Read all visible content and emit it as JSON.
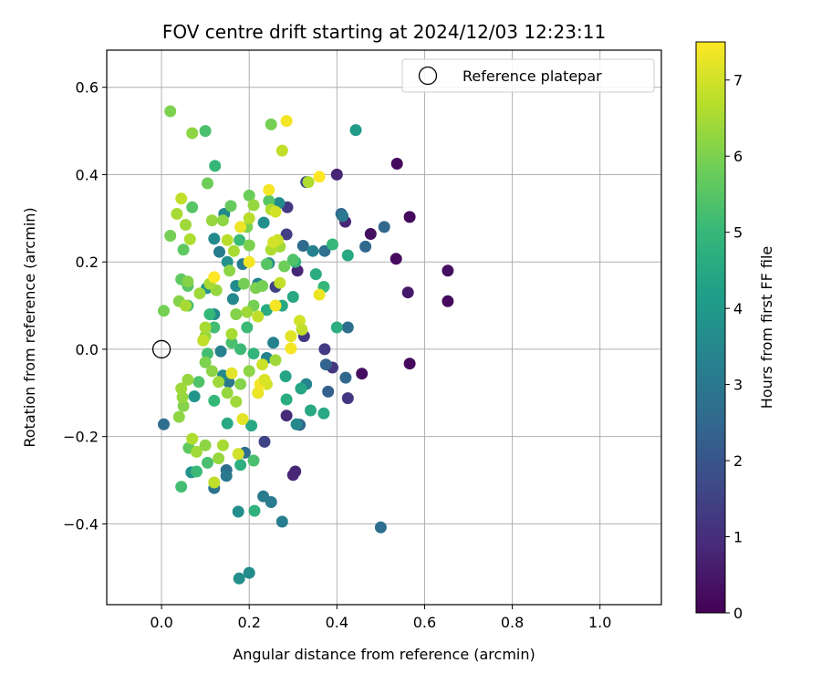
{
  "chart_data": {
    "type": "scatter",
    "title": "FOV centre drift starting at 2024/12/03 12:23:11",
    "xlabel": "Angular distance from reference (arcmin)",
    "ylabel": "Rotation from reference (arcmin)",
    "xlim": [
      -0.125,
      1.14
    ],
    "ylim": [
      -0.585,
      0.685
    ],
    "xticks": [
      "0.0",
      "0.2",
      "0.4",
      "0.6",
      "0.8",
      "1.0"
    ],
    "yticks": [
      "−0.4",
      "−0.2",
      "0.0",
      "0.2",
      "0.4",
      "0.6"
    ],
    "grid": true,
    "legend": {
      "position": "top-right",
      "label": "Reference platepar",
      "marker": "open-circle"
    },
    "reference_point": {
      "x": 0.0,
      "y": 0.0
    },
    "colorbar": {
      "label": "Hours from first FF file",
      "range": [
        0,
        7.5
      ],
      "ticks": [
        "0",
        "1",
        "2",
        "3",
        "4",
        "5",
        "6",
        "7"
      ],
      "colormap": "viridis",
      "stops": [
        "#440154",
        "#482878",
        "#3e4989",
        "#31688e",
        "#26828e",
        "#1f9e89",
        "#35b779",
        "#6ece58",
        "#b5de2b",
        "#fde725"
      ]
    },
    "points": [
      {
        "x": 0.537,
        "y": 0.425,
        "h": 0.2
      },
      {
        "x": 0.566,
        "y": 0.303,
        "h": 0.2
      },
      {
        "x": 0.653,
        "y": 0.18,
        "h": 0.3
      },
      {
        "x": 0.653,
        "y": 0.11,
        "h": 0.2
      },
      {
        "x": 0.562,
        "y": 0.13,
        "h": 0.5
      },
      {
        "x": 0.535,
        "y": 0.207,
        "h": 0.2
      },
      {
        "x": 0.477,
        "y": 0.264,
        "h": 0.3
      },
      {
        "x": 0.566,
        "y": -0.033,
        "h": 0.2
      },
      {
        "x": 0.457,
        "y": -0.056,
        "h": 0.3
      },
      {
        "x": 0.4,
        "y": 0.4,
        "h": 0.8
      },
      {
        "x": 0.419,
        "y": 0.292,
        "h": 0.8
      },
      {
        "x": 0.31,
        "y": 0.18,
        "h": 0.8
      },
      {
        "x": 0.3,
        "y": -0.288,
        "h": 0.8
      },
      {
        "x": 0.305,
        "y": -0.28,
        "h": 0.8
      },
      {
        "x": 0.315,
        "y": -0.173,
        "h": 0.8
      },
      {
        "x": 0.285,
        "y": -0.152,
        "h": 0.9
      },
      {
        "x": 0.425,
        "y": -0.112,
        "h": 1.2
      },
      {
        "x": 0.39,
        "y": -0.042,
        "h": 1.2
      },
      {
        "x": 0.372,
        "y": 0.0,
        "h": 1.3
      },
      {
        "x": 0.325,
        "y": 0.03,
        "h": 1.3
      },
      {
        "x": 0.287,
        "y": 0.325,
        "h": 1.3
      },
      {
        "x": 0.285,
        "y": 0.263,
        "h": 1.4
      },
      {
        "x": 0.26,
        "y": 0.143,
        "h": 1.5
      },
      {
        "x": 0.235,
        "y": -0.212,
        "h": 1.5
      },
      {
        "x": 0.33,
        "y": 0.383,
        "h": 1.8
      },
      {
        "x": 0.41,
        "y": 0.31,
        "h": 2.5
      },
      {
        "x": 0.465,
        "y": 0.235,
        "h": 2.5
      },
      {
        "x": 0.508,
        "y": 0.28,
        "h": 2.5
      },
      {
        "x": 0.5,
        "y": -0.408,
        "h": 2.7
      },
      {
        "x": 0.42,
        "y": -0.065,
        "h": 2.5
      },
      {
        "x": 0.38,
        "y": -0.097,
        "h": 2.3
      },
      {
        "x": 0.375,
        "y": -0.035,
        "h": 2.4
      },
      {
        "x": 0.425,
        "y": 0.05,
        "h": 2.7
      },
      {
        "x": 0.372,
        "y": 0.225,
        "h": 2.8
      },
      {
        "x": 0.323,
        "y": 0.237,
        "h": 2.6
      },
      {
        "x": 0.315,
        "y": -0.173,
        "h": 2.5
      },
      {
        "x": 0.232,
        "y": -0.337,
        "h": 3.1
      },
      {
        "x": 0.25,
        "y": -0.35,
        "h": 3.1
      },
      {
        "x": 0.275,
        "y": -0.395,
        "h": 3.2
      },
      {
        "x": 0.19,
        "y": -0.237,
        "h": 2.7
      },
      {
        "x": 0.148,
        "y": -0.277,
        "h": 2.7
      },
      {
        "x": 0.148,
        "y": -0.29,
        "h": 3.0
      },
      {
        "x": 0.12,
        "y": -0.318,
        "h": 2.9
      },
      {
        "x": 0.005,
        "y": -0.172,
        "h": 2.7
      },
      {
        "x": 0.2,
        "y": -0.512,
        "h": 3.6
      },
      {
        "x": 0.177,
        "y": -0.525,
        "h": 3.7
      },
      {
        "x": 0.175,
        "y": -0.372,
        "h": 3.7
      },
      {
        "x": 0.212,
        "y": -0.37,
        "h": 4.8
      },
      {
        "x": 0.068,
        "y": -0.282,
        "h": 3.9
      },
      {
        "x": 0.075,
        "y": -0.108,
        "h": 3.9
      },
      {
        "x": 0.153,
        "y": -0.075,
        "h": 3.6
      },
      {
        "x": 0.153,
        "y": -0.075,
        "h": 3.0
      },
      {
        "x": 0.14,
        "y": -0.06,
        "h": 3.5
      },
      {
        "x": 0.12,
        "y": 0.08,
        "h": 3.6
      },
      {
        "x": 0.103,
        "y": 0.14,
        "h": 3.8
      },
      {
        "x": 0.15,
        "y": 0.2,
        "h": 3.8
      },
      {
        "x": 0.17,
        "y": 0.145,
        "h": 3.6
      },
      {
        "x": 0.163,
        "y": 0.115,
        "h": 3.5
      },
      {
        "x": 0.245,
        "y": 0.197,
        "h": 3.5
      },
      {
        "x": 0.22,
        "y": 0.15,
        "h": 3.3
      },
      {
        "x": 0.255,
        "y": 0.015,
        "h": 3.3
      },
      {
        "x": 0.24,
        "y": -0.02,
        "h": 3.3
      },
      {
        "x": 0.308,
        "y": -0.172,
        "h": 3.5
      },
      {
        "x": 0.33,
        "y": -0.08,
        "h": 3.4
      },
      {
        "x": 0.345,
        "y": 0.225,
        "h": 3.3
      },
      {
        "x": 0.268,
        "y": 0.335,
        "h": 3.6
      },
      {
        "x": 0.12,
        "y": 0.253,
        "h": 3.6
      },
      {
        "x": 0.185,
        "y": 0.195,
        "h": 3.2
      },
      {
        "x": 0.132,
        "y": 0.223,
        "h": 3.1
      },
      {
        "x": 0.143,
        "y": 0.31,
        "h": 3.5
      },
      {
        "x": 0.135,
        "y": -0.005,
        "h": 3.3
      },
      {
        "x": 0.233,
        "y": 0.29,
        "h": 3.7
      },
      {
        "x": 0.443,
        "y": 0.502,
        "h": 4.1
      },
      {
        "x": 0.413,
        "y": 0.305,
        "h": 3.0
      },
      {
        "x": 0.425,
        "y": 0.215,
        "h": 4.5
      },
      {
        "x": 0.352,
        "y": 0.172,
        "h": 4.6
      },
      {
        "x": 0.305,
        "y": 0.2,
        "h": 4.9
      },
      {
        "x": 0.3,
        "y": 0.12,
        "h": 4.5
      },
      {
        "x": 0.34,
        "y": -0.14,
        "h": 4.5
      },
      {
        "x": 0.37,
        "y": -0.147,
        "h": 4.5
      },
      {
        "x": 0.4,
        "y": 0.05,
        "h": 4.7
      },
      {
        "x": 0.37,
        "y": 0.143,
        "h": 5.0
      },
      {
        "x": 0.39,
        "y": 0.24,
        "h": 5.0
      },
      {
        "x": 0.318,
        "y": -0.09,
        "h": 4.4
      },
      {
        "x": 0.285,
        "y": -0.115,
        "h": 4.6
      },
      {
        "x": 0.283,
        "y": -0.062,
        "h": 4.4
      },
      {
        "x": 0.275,
        "y": 0.1,
        "h": 4.5
      },
      {
        "x": 0.24,
        "y": 0.09,
        "h": 4.6
      },
      {
        "x": 0.205,
        "y": -0.175,
        "h": 4.5
      },
      {
        "x": 0.15,
        "y": -0.17,
        "h": 4.5
      },
      {
        "x": 0.18,
        "y": -0.265,
        "h": 4.7
      },
      {
        "x": 0.21,
        "y": -0.255,
        "h": 5.3
      },
      {
        "x": 0.21,
        "y": -0.01,
        "h": 4.9
      },
      {
        "x": 0.18,
        "y": 0.0,
        "h": 5.1
      },
      {
        "x": 0.16,
        "y": 0.015,
        "h": 5.3
      },
      {
        "x": 0.195,
        "y": 0.05,
        "h": 5.1
      },
      {
        "x": 0.12,
        "y": 0.05,
        "h": 5.2
      },
      {
        "x": 0.11,
        "y": 0.08,
        "h": 5.0
      },
      {
        "x": 0.105,
        "y": -0.01,
        "h": 5.2
      },
      {
        "x": 0.12,
        "y": -0.118,
        "h": 5.0
      },
      {
        "x": 0.085,
        "y": -0.075,
        "h": 5.4
      },
      {
        "x": 0.045,
        "y": -0.315,
        "h": 5.2
      },
      {
        "x": 0.105,
        "y": -0.26,
        "h": 5.3
      },
      {
        "x": 0.062,
        "y": -0.226,
        "h": 5.6
      },
      {
        "x": 0.08,
        "y": -0.28,
        "h": 5.1
      },
      {
        "x": 0.1,
        "y": 0.5,
        "h": 5.3
      },
      {
        "x": 0.122,
        "y": 0.42,
        "h": 5.0
      },
      {
        "x": 0.02,
        "y": 0.26,
        "h": 5.9
      },
      {
        "x": 0.05,
        "y": 0.228,
        "h": 5.6
      },
      {
        "x": 0.045,
        "y": 0.16,
        "h": 5.6
      },
      {
        "x": 0.005,
        "y": 0.088,
        "h": 5.9
      },
      {
        "x": 0.06,
        "y": 0.1,
        "h": 5.3
      },
      {
        "x": 0.06,
        "y": 0.145,
        "h": 5.5
      },
      {
        "x": 0.07,
        "y": 0.325,
        "h": 5.5
      },
      {
        "x": 0.105,
        "y": 0.38,
        "h": 5.8
      },
      {
        "x": 0.158,
        "y": 0.328,
        "h": 5.7
      },
      {
        "x": 0.2,
        "y": 0.352,
        "h": 5.8
      },
      {
        "x": 0.178,
        "y": 0.25,
        "h": 5.1
      },
      {
        "x": 0.195,
        "y": 0.28,
        "h": 6.0
      },
      {
        "x": 0.2,
        "y": 0.238,
        "h": 6.0
      },
      {
        "x": 0.188,
        "y": 0.15,
        "h": 5.9
      },
      {
        "x": 0.215,
        "y": 0.14,
        "h": 6.0
      },
      {
        "x": 0.21,
        "y": 0.1,
        "h": 5.9
      },
      {
        "x": 0.23,
        "y": 0.145,
        "h": 5.9
      },
      {
        "x": 0.24,
        "y": 0.195,
        "h": 5.5
      },
      {
        "x": 0.3,
        "y": 0.205,
        "h": 5.4
      },
      {
        "x": 0.245,
        "y": 0.34,
        "h": 5.5
      },
      {
        "x": 0.25,
        "y": 0.515,
        "h": 5.9
      },
      {
        "x": 0.02,
        "y": 0.545,
        "h": 6.0
      },
      {
        "x": 0.07,
        "y": 0.495,
        "h": 6.2
      },
      {
        "x": 0.27,
        "y": 0.235,
        "h": 6.4
      },
      {
        "x": 0.28,
        "y": 0.19,
        "h": 5.8
      },
      {
        "x": 0.17,
        "y": 0.08,
        "h": 6.1
      },
      {
        "x": 0.125,
        "y": 0.135,
        "h": 6.3
      },
      {
        "x": 0.155,
        "y": 0.18,
        "h": 6.2
      },
      {
        "x": 0.11,
        "y": 0.15,
        "h": 6.5
      },
      {
        "x": 0.087,
        "y": 0.128,
        "h": 6.4
      },
      {
        "x": 0.06,
        "y": 0.155,
        "h": 6.1
      },
      {
        "x": 0.04,
        "y": 0.11,
        "h": 6.1
      },
      {
        "x": 0.055,
        "y": 0.1,
        "h": 6.5
      },
      {
        "x": 0.055,
        "y": 0.285,
        "h": 6.4
      },
      {
        "x": 0.065,
        "y": 0.252,
        "h": 6.6
      },
      {
        "x": 0.035,
        "y": 0.31,
        "h": 6.5
      },
      {
        "x": 0.045,
        "y": 0.345,
        "h": 6.8
      },
      {
        "x": 0.115,
        "y": 0.295,
        "h": 6.3
      },
      {
        "x": 0.14,
        "y": 0.295,
        "h": 6.2
      },
      {
        "x": 0.15,
        "y": 0.25,
        "h": 6.7
      },
      {
        "x": 0.165,
        "y": 0.225,
        "h": 6.5
      },
      {
        "x": 0.2,
        "y": 0.3,
        "h": 6.7
      },
      {
        "x": 0.21,
        "y": 0.33,
        "h": 6.3
      },
      {
        "x": 0.25,
        "y": 0.32,
        "h": 6.6
      },
      {
        "x": 0.26,
        "y": 0.315,
        "h": 7.0
      },
      {
        "x": 0.275,
        "y": 0.455,
        "h": 6.8
      },
      {
        "x": 0.25,
        "y": 0.228,
        "h": 6.6
      },
      {
        "x": 0.265,
        "y": 0.25,
        "h": 6.9
      },
      {
        "x": 0.27,
        "y": 0.152,
        "h": 6.8
      },
      {
        "x": 0.22,
        "y": 0.075,
        "h": 6.8
      },
      {
        "x": 0.195,
        "y": 0.085,
        "h": 6.4
      },
      {
        "x": 0.16,
        "y": 0.035,
        "h": 6.5
      },
      {
        "x": 0.1,
        "y": 0.03,
        "h": 6.3
      },
      {
        "x": 0.1,
        "y": 0.05,
        "h": 6.5
      },
      {
        "x": 0.095,
        "y": 0.02,
        "h": 6.8
      },
      {
        "x": 0.1,
        "y": -0.03,
        "h": 6.0
      },
      {
        "x": 0.115,
        "y": -0.05,
        "h": 6.2
      },
      {
        "x": 0.13,
        "y": -0.075,
        "h": 6.4
      },
      {
        "x": 0.15,
        "y": -0.1,
        "h": 6.3
      },
      {
        "x": 0.17,
        "y": -0.12,
        "h": 6.4
      },
      {
        "x": 0.18,
        "y": -0.08,
        "h": 6.1
      },
      {
        "x": 0.2,
        "y": -0.05,
        "h": 6.2
      },
      {
        "x": 0.22,
        "y": -0.1,
        "h": 6.5
      },
      {
        "x": 0.23,
        "y": -0.035,
        "h": 6.9
      },
      {
        "x": 0.24,
        "y": -0.08,
        "h": 7.0
      },
      {
        "x": 0.26,
        "y": -0.025,
        "h": 6.4
      },
      {
        "x": 0.04,
        "y": -0.155,
        "h": 6.2
      },
      {
        "x": 0.05,
        "y": -0.13,
        "h": 6.1
      },
      {
        "x": 0.048,
        "y": -0.11,
        "h": 6.3
      },
      {
        "x": 0.045,
        "y": -0.09,
        "h": 6.4
      },
      {
        "x": 0.06,
        "y": -0.07,
        "h": 6.3
      },
      {
        "x": 0.07,
        "y": -0.205,
        "h": 6.6
      },
      {
        "x": 0.08,
        "y": -0.235,
        "h": 6.4
      },
      {
        "x": 0.1,
        "y": -0.22,
        "h": 6.2
      },
      {
        "x": 0.13,
        "y": -0.25,
        "h": 6.3
      },
      {
        "x": 0.14,
        "y": -0.22,
        "h": 6.5
      },
      {
        "x": 0.12,
        "y": -0.305,
        "h": 6.8
      },
      {
        "x": 0.175,
        "y": -0.24,
        "h": 7.0
      },
      {
        "x": 0.185,
        "y": -0.16,
        "h": 7.2
      },
      {
        "x": 0.22,
        "y": -0.1,
        "h": 7.3
      },
      {
        "x": 0.225,
        "y": -0.08,
        "h": 7.4
      },
      {
        "x": 0.235,
        "y": -0.07,
        "h": 7.1
      },
      {
        "x": 0.16,
        "y": -0.055,
        "h": 7.2
      },
      {
        "x": 0.2,
        "y": 0.2,
        "h": 7.4
      },
      {
        "x": 0.18,
        "y": 0.28,
        "h": 7.3
      },
      {
        "x": 0.12,
        "y": 0.165,
        "h": 7.5
      },
      {
        "x": 0.245,
        "y": 0.365,
        "h": 7.4
      },
      {
        "x": 0.285,
        "y": 0.523,
        "h": 7.4
      },
      {
        "x": 0.36,
        "y": 0.395,
        "h": 7.5
      },
      {
        "x": 0.335,
        "y": 0.383,
        "h": 6.6
      },
      {
        "x": 0.36,
        "y": 0.125,
        "h": 7.3
      },
      {
        "x": 0.26,
        "y": 0.1,
        "h": 7.4
      },
      {
        "x": 0.315,
        "y": 0.065,
        "h": 7.0
      },
      {
        "x": 0.295,
        "y": 0.03,
        "h": 7.2
      },
      {
        "x": 0.295,
        "y": 0.002,
        "h": 7.4
      },
      {
        "x": 0.32,
        "y": 0.045,
        "h": 6.8
      },
      {
        "x": 0.255,
        "y": 0.245,
        "h": 7.0
      }
    ]
  }
}
